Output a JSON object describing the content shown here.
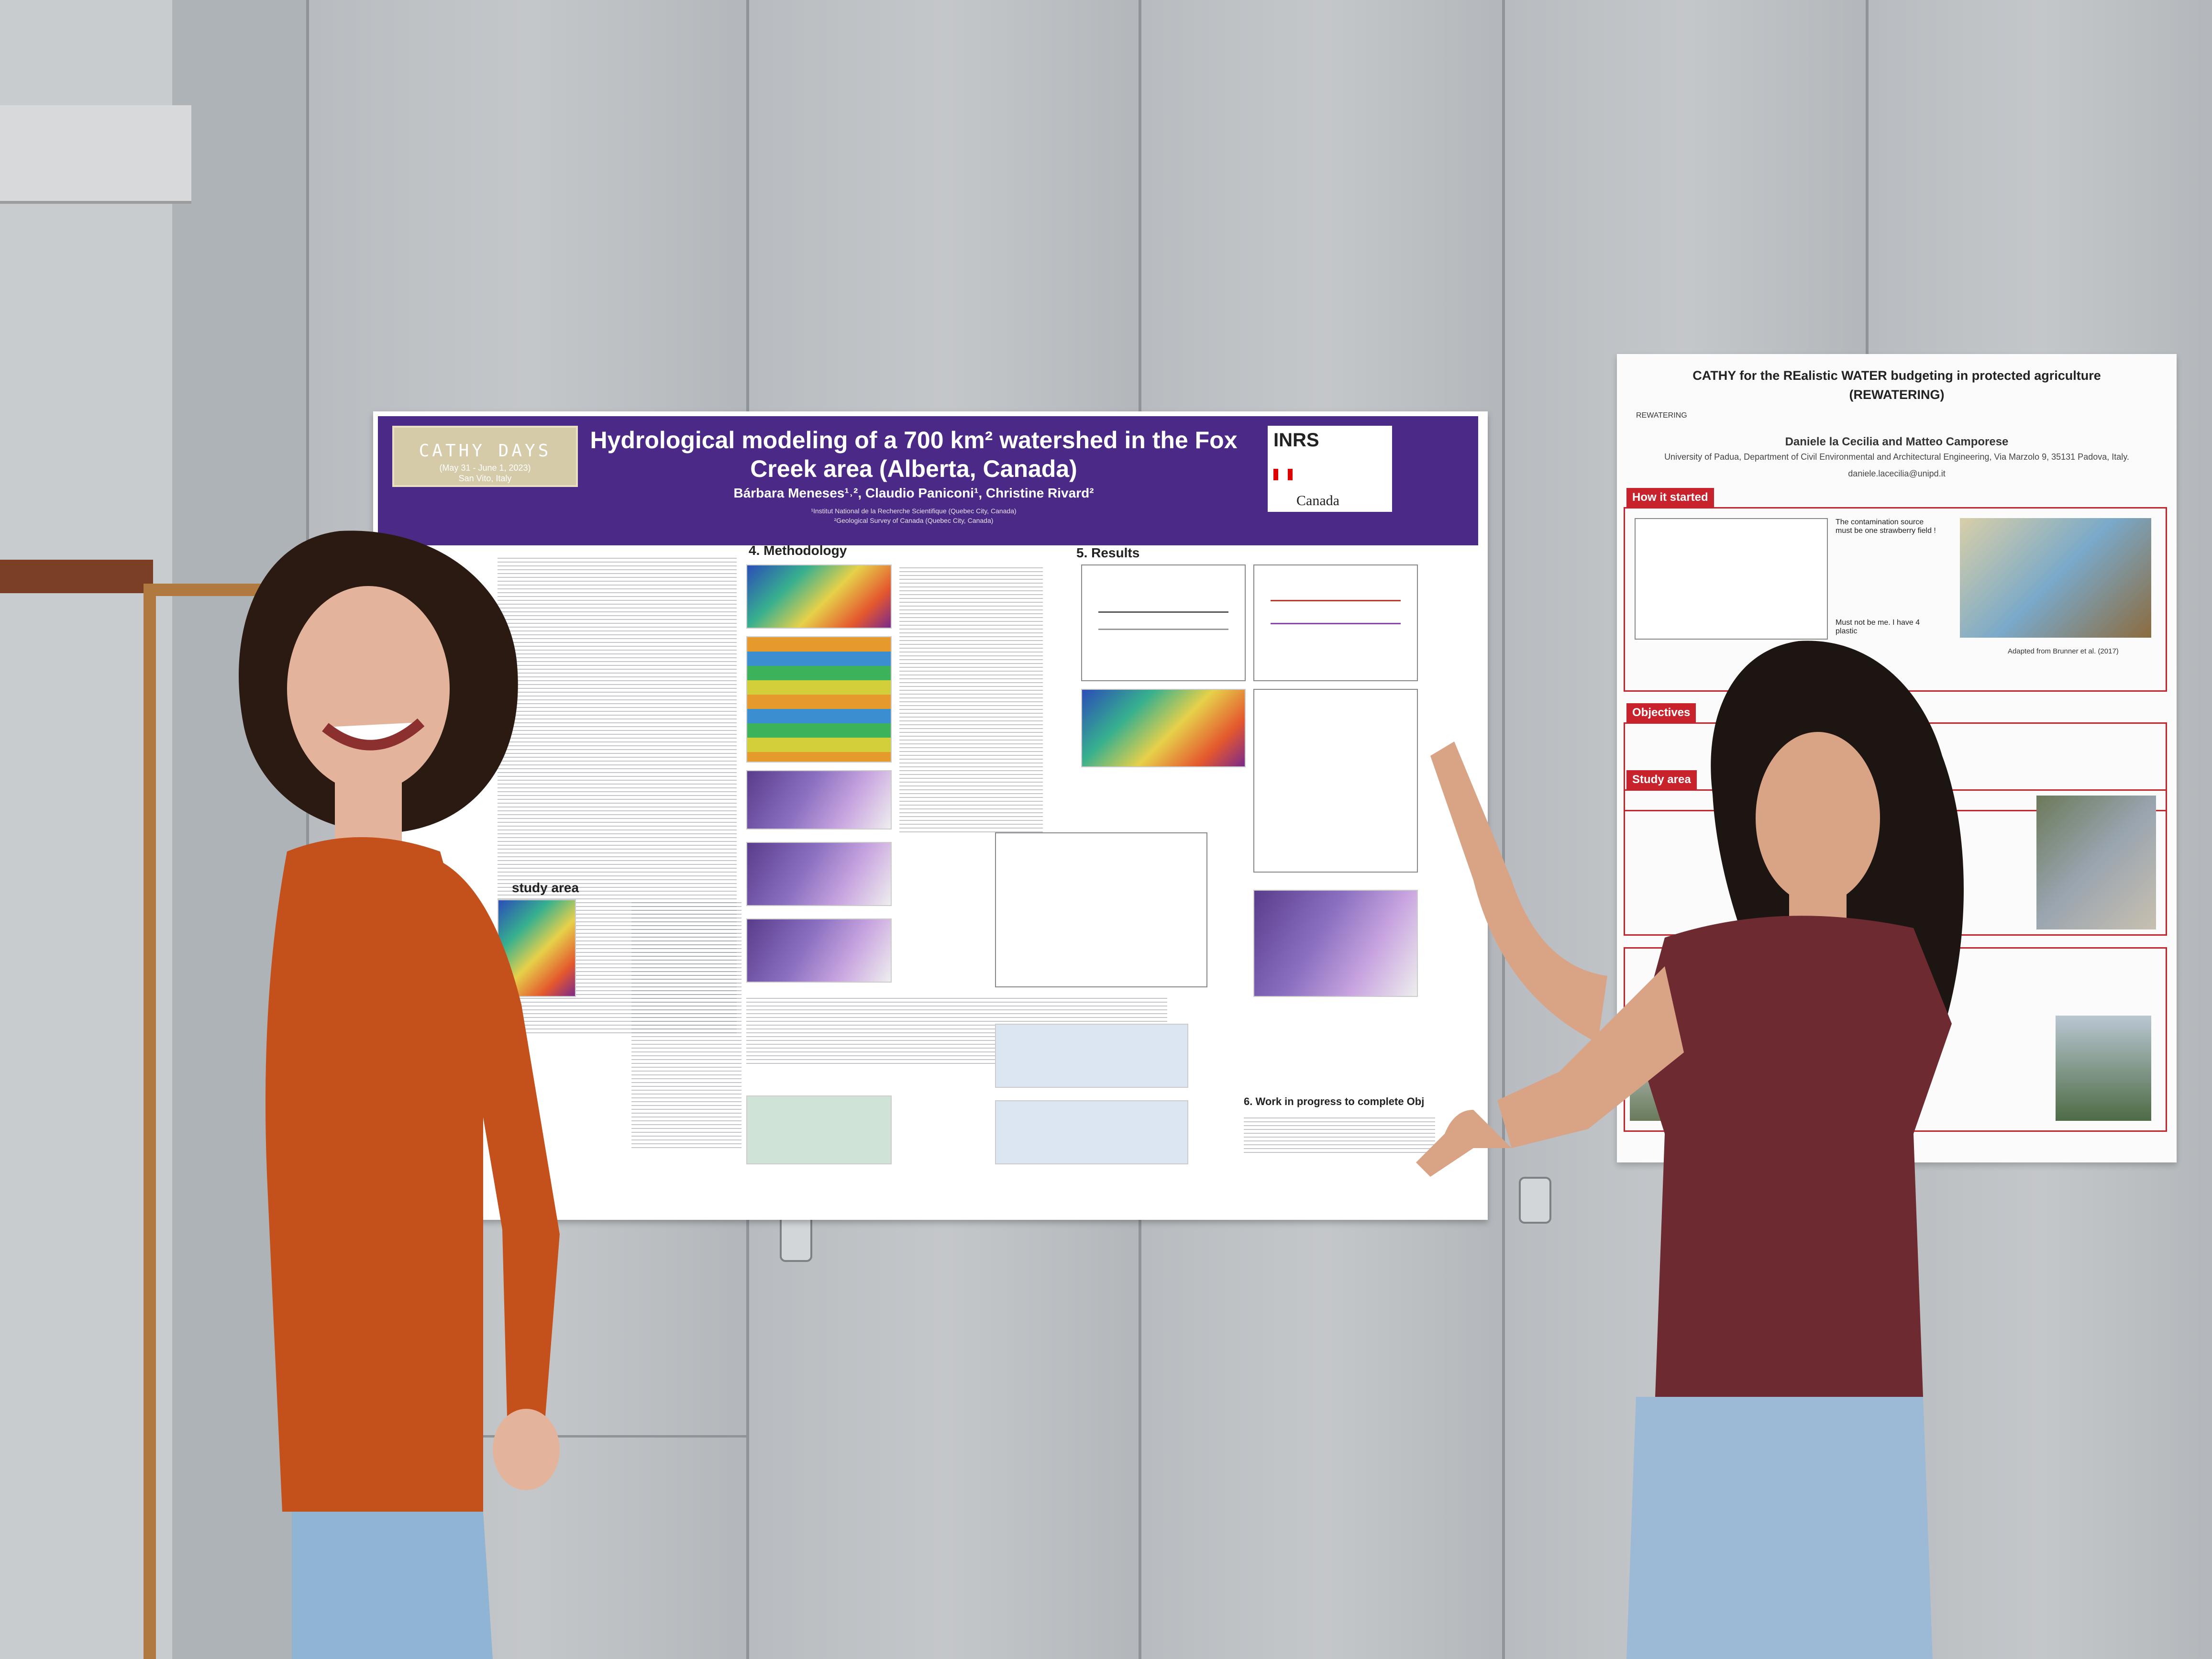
{
  "main_poster": {
    "badge_title": "CATHY DAYS",
    "badge_dates": "(May 31 - June 1, 2023)",
    "badge_place": "San Vito, Italy",
    "title": "Hydrological modeling of a 700 km² watershed in the Fox Creek area (Alberta, Canada)",
    "authors": "Bárbara Meneses¹˒², Claudio Paniconi¹, Christine Rivard²",
    "affiliation_1": "¹Institut National de la Recherche Scientifique (Quebec City, Canada)",
    "affiliation_2": "²Geological Survey of Canada (Quebec City, Canada)",
    "logo_inrs": "INRS",
    "logo_canada": "Canada",
    "section_methodology": "4. Methodology",
    "section_results": "5. Results",
    "section_study_area": "study area",
    "section_work": "6. Work in progress to complete Obj"
  },
  "second_poster": {
    "title": "CATHY for the REalistic WATER budgeting in protected agriculture",
    "subtitle": "(REWATERING)",
    "logo_label": "REWATERING",
    "authors": "Daniele la Cecilia and Matteo Camporese",
    "affiliation": "University of Padua, Department of Civil Environmental and Architectural Engineering, Via Marzolo 9, 35131 Padova, Italy.",
    "email": "daniele.lacecilia@unipd.it",
    "section_how": "How it started",
    "section_objectives": "Objectives",
    "section_study_area": "Study area",
    "speech_1": "The contamination source must be one strawberry field !",
    "speech_2": "Must not be me. I have 4 plastic",
    "caption": "Adapted from Brunner et al. (2017)"
  }
}
